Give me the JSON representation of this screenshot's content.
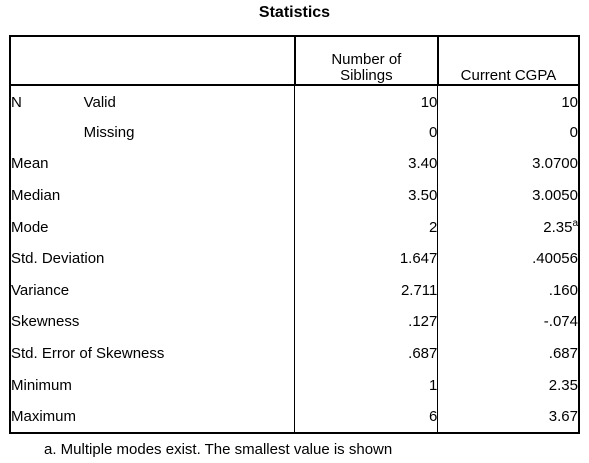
{
  "title": "Statistics",
  "columns": {
    "c1": "Number of Siblings",
    "c2": "Current CGPA"
  },
  "rows": [
    {
      "label1": "N",
      "label2": "Valid",
      "v1": "10",
      "v2": "10"
    },
    {
      "label1": "",
      "label2": "Missing",
      "v1": "0",
      "v2": "0"
    },
    {
      "label": "Mean",
      "v1": "3.40",
      "v2": "3.0700"
    },
    {
      "label": "Median",
      "v1": "3.50",
      "v2": "3.0050"
    },
    {
      "label": "Mode",
      "v1": "2",
      "v2": "2.35",
      "v2_sup": "a"
    },
    {
      "label": "Std. Deviation",
      "v1": "1.647",
      "v2": ".40056"
    },
    {
      "label": "Variance",
      "v1": "2.711",
      "v2": ".160"
    },
    {
      "label": "Skewness",
      "v1": ".127",
      "v2": "-.074"
    },
    {
      "label": "Std. Error of Skewness",
      "v1": ".687",
      "v2": ".687"
    },
    {
      "label": "Minimum",
      "v1": "1",
      "v2": "2.35"
    },
    {
      "label": "Maximum",
      "v1": "6",
      "v2": "3.67"
    }
  ],
  "footnote": "a. Multiple modes exist. The smallest value is shown"
}
